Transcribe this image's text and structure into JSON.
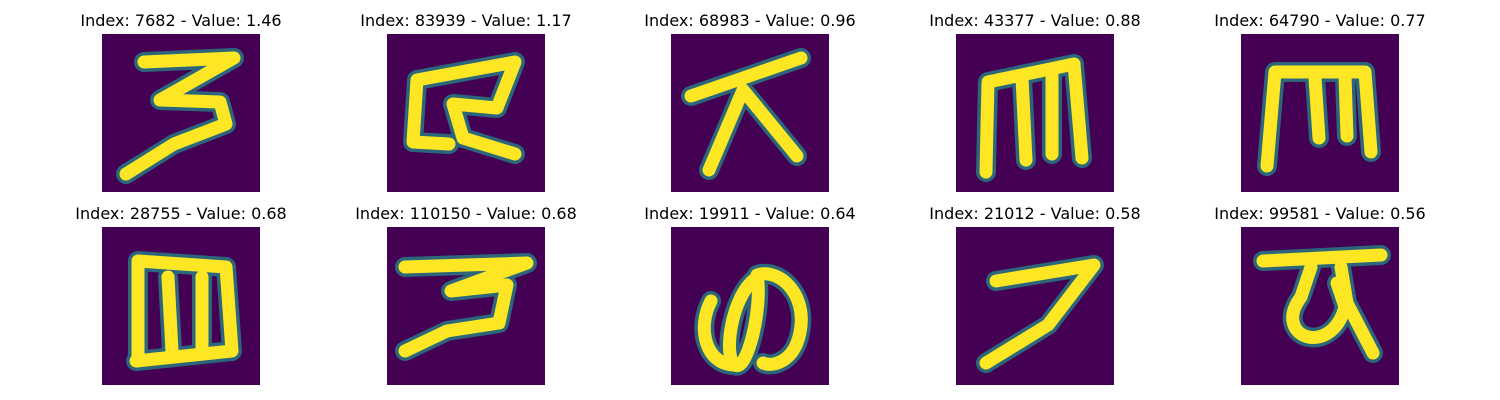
{
  "colors": {
    "background": "#440154",
    "stroke_edge": "#21918c",
    "stroke_core": "#fde725",
    "title_text": "#000000"
  },
  "panels": [
    {
      "index": 7682,
      "value": 1.46,
      "title": "Index: 7682 - Value: 1.46",
      "glyph": "three-like-character"
    },
    {
      "index": 83939,
      "value": 1.17,
      "title": "Index: 83939 - Value: 1.17",
      "glyph": "ka-like-character"
    },
    {
      "index": 68983,
      "value": 0.96,
      "title": "Index: 68983 - Value: 0.96",
      "glyph": "dai-like-character"
    },
    {
      "index": 43377,
      "value": 0.88,
      "title": "Index: 43377 - Value: 0.88",
      "glyph": "m-like-character"
    },
    {
      "index": 64790,
      "value": 0.77,
      "title": "Index: 64790 - Value: 0.77",
      "glyph": "m-like-character"
    },
    {
      "index": 28755,
      "value": 0.68,
      "title": "Index: 28755 - Value: 0.68",
      "glyph": "m-like-character"
    },
    {
      "index": 110150,
      "value": 0.68,
      "title": "Index: 110150 - Value: 0.68",
      "glyph": "three-like-character"
    },
    {
      "index": 19911,
      "value": 0.64,
      "title": "Index: 19911 - Value: 0.64",
      "glyph": "no-like-character"
    },
    {
      "index": 21012,
      "value": 0.58,
      "title": "Index: 21012 - Value: 0.58",
      "glyph": "seven-like-character"
    },
    {
      "index": 99581,
      "value": 0.56,
      "title": "Index: 99581 - Value: 0.56",
      "glyph": "loop-like-character"
    }
  ]
}
